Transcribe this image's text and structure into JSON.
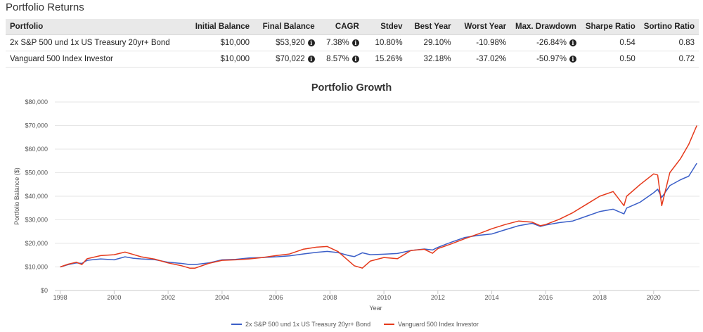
{
  "section_title": "Portfolio Returns",
  "table": {
    "headers": [
      "Portfolio",
      "Initial Balance",
      "Final Balance",
      "CAGR",
      "Stdev",
      "Best Year",
      "Worst Year",
      "Max. Drawdown",
      "Sharpe Ratio",
      "Sortino Ratio"
    ],
    "rows": [
      {
        "portfolio": "2x S&P 500 und 1x US Treasury 20yr+ Bond",
        "initial": "$10,000",
        "final": "$53,920",
        "cagr": "7.38%",
        "stdev": "10.80%",
        "best": "29.10%",
        "worst": "-10.98%",
        "drawdown": "-26.84%",
        "sharpe": "0.54",
        "sortino": "0.83"
      },
      {
        "portfolio": "Vanguard 500 Index Investor",
        "initial": "$10,000",
        "final": "$70,022",
        "cagr": "8.57%",
        "stdev": "15.26%",
        "best": "32.18%",
        "worst": "-37.02%",
        "drawdown": "-50.97%",
        "sharpe": "0.50",
        "sortino": "0.72"
      }
    ],
    "info_icon": "info-circle-icon"
  },
  "chart_data": {
    "type": "line",
    "title": "Portfolio Growth",
    "xlabel": "Year",
    "ylabel": "Portfolio Balance ($)",
    "xlim": [
      1997.8,
      2021.7
    ],
    "ylim": [
      0,
      80000
    ],
    "x_ticks": [
      "1998",
      "2000",
      "2002",
      "2004",
      "2006",
      "2008",
      "2010",
      "2012",
      "2014",
      "2016",
      "2018",
      "2020"
    ],
    "y_ticks": [
      "$0",
      "$10,000",
      "$20,000",
      "$30,000",
      "$40,000",
      "$50,000",
      "$60,000",
      "$70,000",
      "$80,000"
    ],
    "grid": "horizontal",
    "legend": "bottom",
    "series": [
      {
        "name": "2x S&P 500 und 1x US Treasury 20yr+ Bond",
        "color": "#3b5fc8",
        "x": [
          1998.0,
          1998.3,
          1998.6,
          1998.8,
          1999.0,
          1999.5,
          2000.0,
          2000.4,
          2000.7,
          2001.0,
          2001.5,
          2002.0,
          2002.5,
          2002.8,
          2003.0,
          2003.5,
          2004.0,
          2004.5,
          2005.0,
          2005.5,
          2006.0,
          2006.5,
          2007.0,
          2007.5,
          2007.9,
          2008.3,
          2008.7,
          2008.9,
          2009.2,
          2009.5,
          2010.0,
          2010.5,
          2011.0,
          2011.5,
          2011.8,
          2012.0,
          2012.5,
          2013.0,
          2013.5,
          2014.0,
          2014.5,
          2015.0,
          2015.5,
          2015.8,
          2016.0,
          2016.5,
          2017.0,
          2017.5,
          2018.0,
          2018.5,
          2018.9,
          2019.0,
          2019.5,
          2020.0,
          2020.15,
          2020.3,
          2020.6,
          2021.0,
          2021.3,
          2021.6
        ],
        "values": [
          10000,
          11000,
          11700,
          11500,
          12800,
          13400,
          13000,
          14300,
          13700,
          13400,
          13100,
          12000,
          11500,
          11000,
          11000,
          11700,
          13000,
          13200,
          13800,
          14000,
          14300,
          14700,
          15500,
          16200,
          16600,
          16100,
          14800,
          14400,
          16000,
          15200,
          15400,
          15700,
          17000,
          17600,
          17200,
          18300,
          20500,
          22500,
          23400,
          24000,
          25800,
          27500,
          28500,
          27200,
          27800,
          28800,
          29500,
          31500,
          33500,
          34500,
          32500,
          35000,
          37500,
          41500,
          43000,
          39500,
          44500,
          47000,
          48500,
          54000
        ]
      },
      {
        "name": "Vanguard 500 Index Investor",
        "color": "#e5391b",
        "x": [
          1998.0,
          1998.3,
          1998.6,
          1998.8,
          1999.0,
          1999.5,
          2000.0,
          2000.4,
          2000.7,
          2001.0,
          2001.5,
          2002.0,
          2002.5,
          2002.8,
          2003.0,
          2003.5,
          2004.0,
          2004.5,
          2005.0,
          2005.5,
          2006.0,
          2006.5,
          2007.0,
          2007.5,
          2007.9,
          2008.3,
          2008.7,
          2008.9,
          2009.2,
          2009.5,
          2010.0,
          2010.5,
          2011.0,
          2011.5,
          2011.8,
          2012.0,
          2012.5,
          2013.0,
          2013.5,
          2014.0,
          2014.5,
          2015.0,
          2015.5,
          2015.8,
          2016.0,
          2016.5,
          2017.0,
          2017.5,
          2018.0,
          2018.5,
          2018.9,
          2019.0,
          2019.5,
          2020.0,
          2020.15,
          2020.3,
          2020.6,
          2021.0,
          2021.3,
          2021.6
        ],
        "values": [
          10000,
          11200,
          12000,
          11000,
          13500,
          14800,
          15200,
          16300,
          15300,
          14300,
          13300,
          11700,
          10500,
          9500,
          9500,
          11500,
          12800,
          13000,
          13400,
          14000,
          14800,
          15500,
          17500,
          18400,
          18700,
          16500,
          12500,
          10500,
          9500,
          12500,
          14000,
          13500,
          17000,
          17500,
          15800,
          17800,
          19800,
          22000,
          24000,
          26200,
          28000,
          29500,
          29000,
          27500,
          28000,
          30200,
          33000,
          36500,
          40000,
          42000,
          36000,
          40000,
          45000,
          49500,
          49000,
          36000,
          50000,
          56000,
          62000,
          70000
        ]
      }
    ]
  }
}
